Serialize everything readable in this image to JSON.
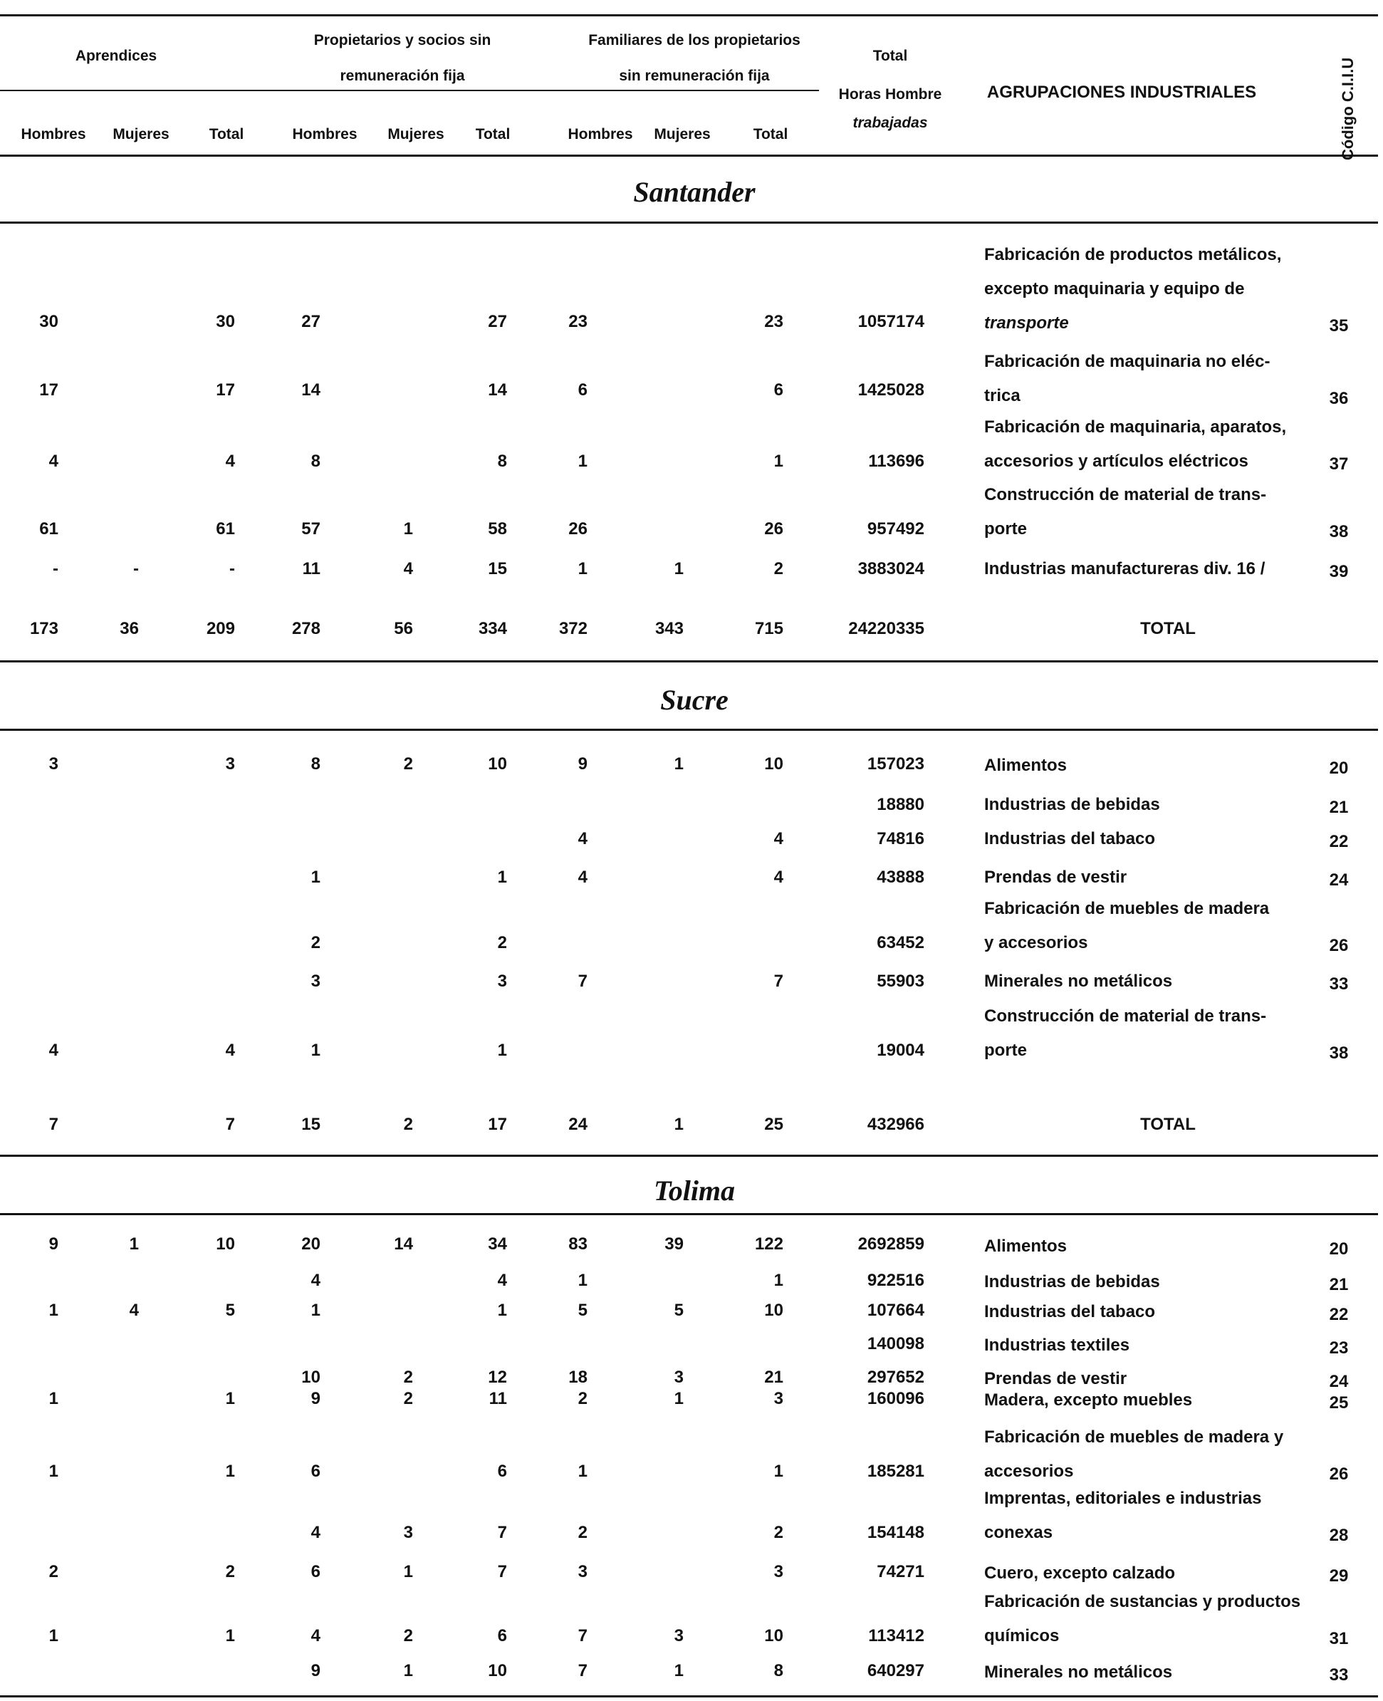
{
  "header": {
    "aprendices": "Aprendices",
    "propietarios_l1": "Propietarios y socios sin",
    "propietarios_l2": "remuneración fija",
    "familiares_l1": "Familiares de los propietarios",
    "familiares_l2": "sin remuneración fija",
    "total_l1": "Total",
    "total_l2": "Horas Hombre",
    "total_l3": "trabajadas",
    "agrupaciones": "AGRUPACIONES INDUSTRIALES",
    "codigo": "Código C.I.I.U",
    "sub": [
      "Hombres",
      "Mujeres",
      "Total",
      "Hombres",
      "Mujeres",
      "Total",
      "Hombres",
      "Mujeres",
      "Total"
    ]
  },
  "sections": [
    {
      "name": "Santander",
      "rows": [
        {
          "v": [
            "30",
            "",
            "30",
            "27",
            "",
            "27",
            "23",
            "",
            "23",
            "1057174"
          ],
          "desc": [
            "Fabricación de productos metálicos,",
            "excepto maquinaria y equipo de",
            "transporte"
          ],
          "code": "35"
        },
        {
          "v": [
            "17",
            "",
            "17",
            "14",
            "",
            "14",
            "6",
            "",
            "6",
            "1425028"
          ],
          "desc": [
            "Fabricación de maquinaria no eléc-",
            "trica"
          ],
          "code": "36"
        },
        {
          "v": [
            "4",
            "",
            "4",
            "8",
            "",
            "8",
            "1",
            "",
            "1",
            "113696"
          ],
          "desc": [
            "Fabricación de maquinaria, aparatos,",
            "accesorios y artículos eléctricos"
          ],
          "code": "37"
        },
        {
          "v": [
            "61",
            "",
            "61",
            "57",
            "1",
            "58",
            "26",
            "",
            "26",
            "957492"
          ],
          "desc": [
            "Construcción de material de trans-",
            "porte"
          ],
          "code": "38"
        },
        {
          "v": [
            "-",
            "-",
            "-",
            "11",
            "4",
            "15",
            "1",
            "1",
            "2",
            "3883024"
          ],
          "desc": [
            "Industrias manufactureras div. 16 /"
          ],
          "code": "39"
        }
      ],
      "total": {
        "v": [
          "173",
          "36",
          "209",
          "278",
          "56",
          "334",
          "372",
          "343",
          "715",
          "24220335"
        ],
        "label": "TOTAL"
      }
    },
    {
      "name": "Sucre",
      "rows": [
        {
          "v": [
            "3",
            "",
            "3",
            "8",
            "2",
            "10",
            "9",
            "1",
            "10",
            "157023"
          ],
          "desc": [
            "Alimentos"
          ],
          "code": "20"
        },
        {
          "v": [
            "",
            "",
            "",
            "",
            "",
            "",
            "",
            "",
            "",
            "18880"
          ],
          "desc": [
            "Industrias de bebidas"
          ],
          "code": "21"
        },
        {
          "v": [
            "",
            "",
            "",
            "",
            "",
            "",
            "4",
            "",
            "4",
            "74816"
          ],
          "desc": [
            "Industrias del tabaco"
          ],
          "code": "22"
        },
        {
          "v": [
            "",
            "",
            "",
            "1",
            "",
            "1",
            "4",
            "",
            "4",
            "43888"
          ],
          "desc": [
            "Prendas de vestir"
          ],
          "code": "24"
        },
        {
          "v": [
            "",
            "",
            "",
            "2",
            "",
            "2",
            "",
            "",
            "",
            "63452"
          ],
          "desc": [
            "Fabricación de muebles de madera",
            "y accesorios"
          ],
          "code": "26"
        },
        {
          "v": [
            "",
            "",
            "",
            "3",
            "",
            "3",
            "7",
            "",
            "7",
            "55903"
          ],
          "desc": [
            "Minerales no metálicos"
          ],
          "code": "33"
        },
        {
          "v": [
            "4",
            "",
            "4",
            "1",
            "",
            "1",
            "",
            "",
            "",
            "19004"
          ],
          "desc": [
            "Construcción de material de trans-",
            "porte"
          ],
          "code": "38"
        }
      ],
      "total": {
        "v": [
          "7",
          "",
          "7",
          "15",
          "2",
          "17",
          "24",
          "1",
          "25",
          "432966"
        ],
        "label": "TOTAL"
      }
    },
    {
      "name": "Tolima",
      "rows": [
        {
          "v": [
            "9",
            "1",
            "10",
            "20",
            "14",
            "34",
            "83",
            "39",
            "122",
            "2692859"
          ],
          "desc": [
            "Alimentos"
          ],
          "code": "20"
        },
        {
          "v": [
            "",
            "",
            "",
            "4",
            "",
            "4",
            "1",
            "",
            "1",
            "922516"
          ],
          "desc": [
            "Industrias de bebidas"
          ],
          "code": "21"
        },
        {
          "v": [
            "1",
            "4",
            "5",
            "1",
            "",
            "1",
            "5",
            "5",
            "10",
            "107664"
          ],
          "desc": [
            "Industrias del tabaco"
          ],
          "code": "22"
        },
        {
          "v": [
            "",
            "",
            "",
            "",
            "",
            "",
            "",
            "",
            "",
            "140098"
          ],
          "desc": [
            "Industrias textiles"
          ],
          "code": "23"
        },
        {
          "v": [
            "",
            "",
            "",
            "10",
            "2",
            "12",
            "18",
            "3",
            "21",
            "297652"
          ],
          "desc": [
            "Prendas de vestir"
          ],
          "code": "24"
        },
        {
          "v": [
            "1",
            "",
            "1",
            "9",
            "2",
            "11",
            "2",
            "1",
            "3",
            "160096"
          ],
          "desc": [
            "Madera, excepto muebles"
          ],
          "code": "25"
        },
        {
          "v": [
            "1",
            "",
            "1",
            "6",
            "",
            "6",
            "1",
            "",
            "1",
            "185281"
          ],
          "desc": [
            "Fabricación de muebles de madera y",
            "accesorios"
          ],
          "code": "26"
        },
        {
          "v": [
            "",
            "",
            "",
            "4",
            "3",
            "7",
            "2",
            "",
            "2",
            "154148"
          ],
          "desc": [
            "Imprentas, editoriales e industrias",
            "conexas"
          ],
          "code": "28"
        },
        {
          "v": [
            "2",
            "",
            "2",
            "6",
            "1",
            "7",
            "3",
            "",
            "3",
            "74271"
          ],
          "desc": [
            "Cuero, excepto calzado"
          ],
          "code": "29"
        },
        {
          "v": [
            "1",
            "",
            "1",
            "4",
            "2",
            "6",
            "7",
            "3",
            "10",
            "113412"
          ],
          "desc": [
            "Fabricación de sustancias y productos",
            "químicos"
          ],
          "code": "31"
        },
        {
          "v": [
            "",
            "",
            "",
            "9",
            "1",
            "10",
            "7",
            "1",
            "8",
            "640297"
          ],
          "desc": [
            "Minerales no metálicos"
          ],
          "code": "33"
        }
      ]
    }
  ]
}
